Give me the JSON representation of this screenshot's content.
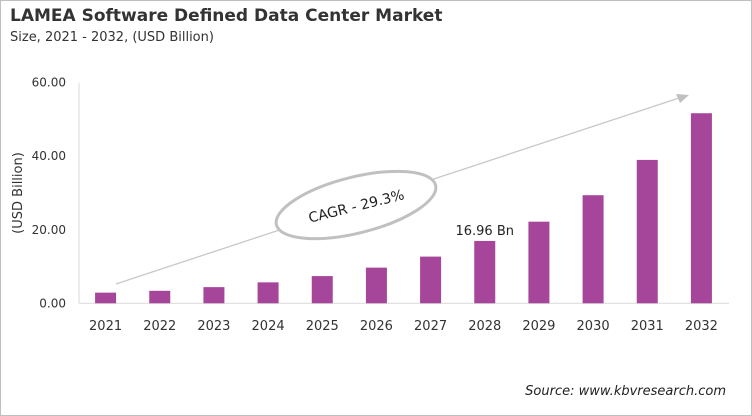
{
  "chart_data": {
    "type": "bar",
    "title": "LAMEA Software Defined Data Center Market",
    "subtitle": "Size, 2021 - 2032, (USD Billion)",
    "xlabel": "",
    "ylabel": "(USD Billion)",
    "ylim": [
      0,
      60
    ],
    "yticks": [
      "0.00",
      "20.00",
      "40.00",
      "60.00"
    ],
    "categories": [
      "2021",
      "2022",
      "2023",
      "2024",
      "2025",
      "2026",
      "2027",
      "2028",
      "2029",
      "2030",
      "2031",
      "2032"
    ],
    "values": [
      2.9,
      3.4,
      4.4,
      5.7,
      7.4,
      9.7,
      12.7,
      16.96,
      22.2,
      29.4,
      39.0,
      51.7
    ],
    "bar_color": "#a6469b",
    "grid": false,
    "annotations": {
      "data_label": {
        "category": "2028",
        "text": "16.96 Bn"
      },
      "cagr": "CAGR - 29.3%"
    },
    "source": "Source: www.kbvresearch.com"
  }
}
